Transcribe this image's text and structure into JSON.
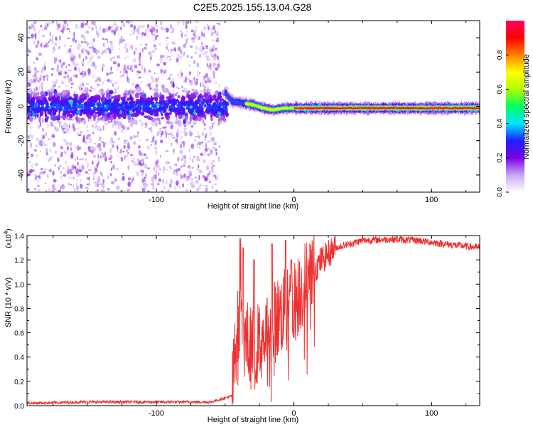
{
  "title": "C2E5.2025.155.13.04.G28",
  "chart_data": [
    {
      "type": "heatmap",
      "xlabel": "Height of straight line (km)",
      "ylabel": "Frequency (Hz)",
      "xlim": [
        -194,
        135
      ],
      "ylim": [
        -50,
        50
      ],
      "xticks": [
        -100,
        0,
        100
      ],
      "xtick_labels": [
        "-100",
        "0",
        "100"
      ],
      "yticks": [
        -40,
        -20,
        0,
        20,
        40
      ],
      "ytick_labels": [
        "-40",
        "-20",
        "0",
        "20",
        "40"
      ],
      "colorbar": {
        "label": "Normalized spectral amplitude",
        "range": [
          0,
          1
        ],
        "ticks": [
          0,
          0.2,
          0.4,
          0.6,
          0.8
        ],
        "tick_labels": [
          "0.0",
          "0.2",
          "0.4",
          "0.6",
          "0.8"
        ],
        "colormap": [
          "#ffffff",
          "#c9a6f2",
          "#7a00e6",
          "#2020ff",
          "#00e5ff",
          "#00ff60",
          "#b0ff00",
          "#ffff00",
          "#ff8000",
          "#ff0000",
          "#ff0060"
        ]
      },
      "scatter_region": {
        "x": [
          -194,
          -54
        ],
        "freq_spread": 50,
        "core_spread": 10
      },
      "ridge": [
        {
          "x": -50,
          "f": 8
        },
        {
          "x": -45,
          "f": 3
        },
        {
          "x": -38,
          "f": 2
        },
        {
          "x": -30,
          "f": 1
        },
        {
          "x": -22,
          "f": -1
        },
        {
          "x": -15,
          "f": -2
        },
        {
          "x": -8,
          "f": -1
        },
        {
          "x": 0,
          "f": -1
        },
        {
          "x": 20,
          "f": -1
        },
        {
          "x": 60,
          "f": -1
        },
        {
          "x": 100,
          "f": -1
        },
        {
          "x": 135,
          "f": -1
        }
      ]
    },
    {
      "type": "line",
      "xlabel": "Height of straight line (km)",
      "ylabel": "SNR (10 * v/v)",
      "y_multiplier": "(x10^4)",
      "xlim": [
        -194,
        135
      ],
      "ylim": [
        0,
        1.4
      ],
      "xticks": [
        -100,
        0,
        100
      ],
      "xtick_labels": [
        "-100",
        "0",
        "100"
      ],
      "yticks": [
        0,
        0.2,
        0.4,
        0.6,
        0.8,
        1.0,
        1.2,
        1.4
      ],
      "ytick_labels": [
        "0.0",
        "0.2",
        "0.4",
        "0.6",
        "0.8",
        "1.0",
        "1.2",
        "1.4"
      ],
      "color": "#ee3030",
      "envelope": [
        {
          "x": -194,
          "y": 0.02
        },
        {
          "x": -150,
          "y": 0.03
        },
        {
          "x": -100,
          "y": 0.03
        },
        {
          "x": -60,
          "y": 0.03
        },
        {
          "x": -45,
          "y": 0.08
        },
        {
          "x": -41,
          "y": 0.7
        },
        {
          "x": -38,
          "y": 0.6
        },
        {
          "x": -30,
          "y": 0.45
        },
        {
          "x": -20,
          "y": 0.6
        },
        {
          "x": -10,
          "y": 0.75
        },
        {
          "x": 0,
          "y": 0.85
        },
        {
          "x": 10,
          "y": 1.05
        },
        {
          "x": 20,
          "y": 1.2
        },
        {
          "x": 30,
          "y": 1.3
        },
        {
          "x": 50,
          "y": 1.36
        },
        {
          "x": 70,
          "y": 1.37
        },
        {
          "x": 90,
          "y": 1.36
        },
        {
          "x": 110,
          "y": 1.33
        },
        {
          "x": 135,
          "y": 1.3
        }
      ],
      "peaks": [
        {
          "x": -39,
          "y": 1.38
        },
        {
          "x": -37,
          "y": 1.3
        },
        {
          "x": -29,
          "y": 1.2
        },
        {
          "x": -16,
          "y": 1.33
        },
        {
          "x": -6,
          "y": 1.36
        },
        {
          "x": -2,
          "y": 1.2
        }
      ]
    }
  ]
}
